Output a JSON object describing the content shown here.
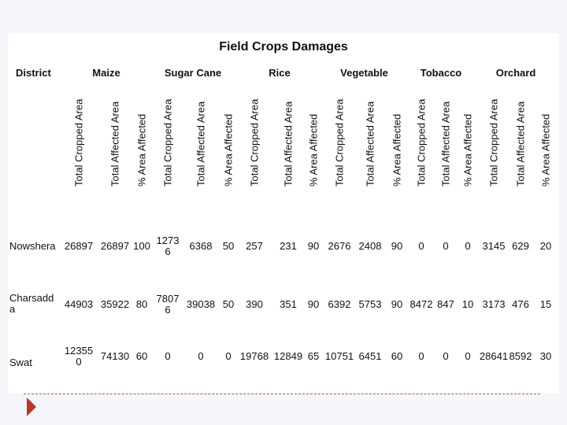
{
  "title": "Field Crops Damages",
  "district_header": "District",
  "groups": [
    "Maize",
    "Sugar Cane",
    "Rice",
    "Vegetable",
    "Tobacco",
    "Orchard"
  ],
  "column_labels": [
    "Total Cropped Area",
    "Total Affected Area",
    "% Area Affected"
  ],
  "rows": [
    {
      "district": "Nowshera",
      "values": [
        "26897",
        "26897",
        "100",
        "1273\n6",
        "6368",
        "50",
        "257",
        "231",
        "90",
        "2676",
        "2408",
        "90",
        "0",
        "0",
        "0",
        "3145",
        "629",
        "20"
      ]
    },
    {
      "district": "Charsadd\na",
      "values": [
        "44903",
        "35922",
        "80",
        "7807\n6",
        "39038",
        "50",
        "390",
        "351",
        "90",
        "6392",
        "5753",
        "90",
        "8472",
        "847",
        "10",
        "3173",
        "476",
        "15"
      ]
    },
    {
      "district": "Swat",
      "values": [
        "12355\n0",
        "74130",
        "60",
        "0",
        "0",
        "0",
        "19768",
        "12849",
        "65",
        "10751",
        "6451",
        "60",
        "0",
        "0",
        "0",
        "28641",
        "8592",
        "30"
      ]
    }
  ],
  "colors": {
    "accent": "#b73a2a"
  }
}
